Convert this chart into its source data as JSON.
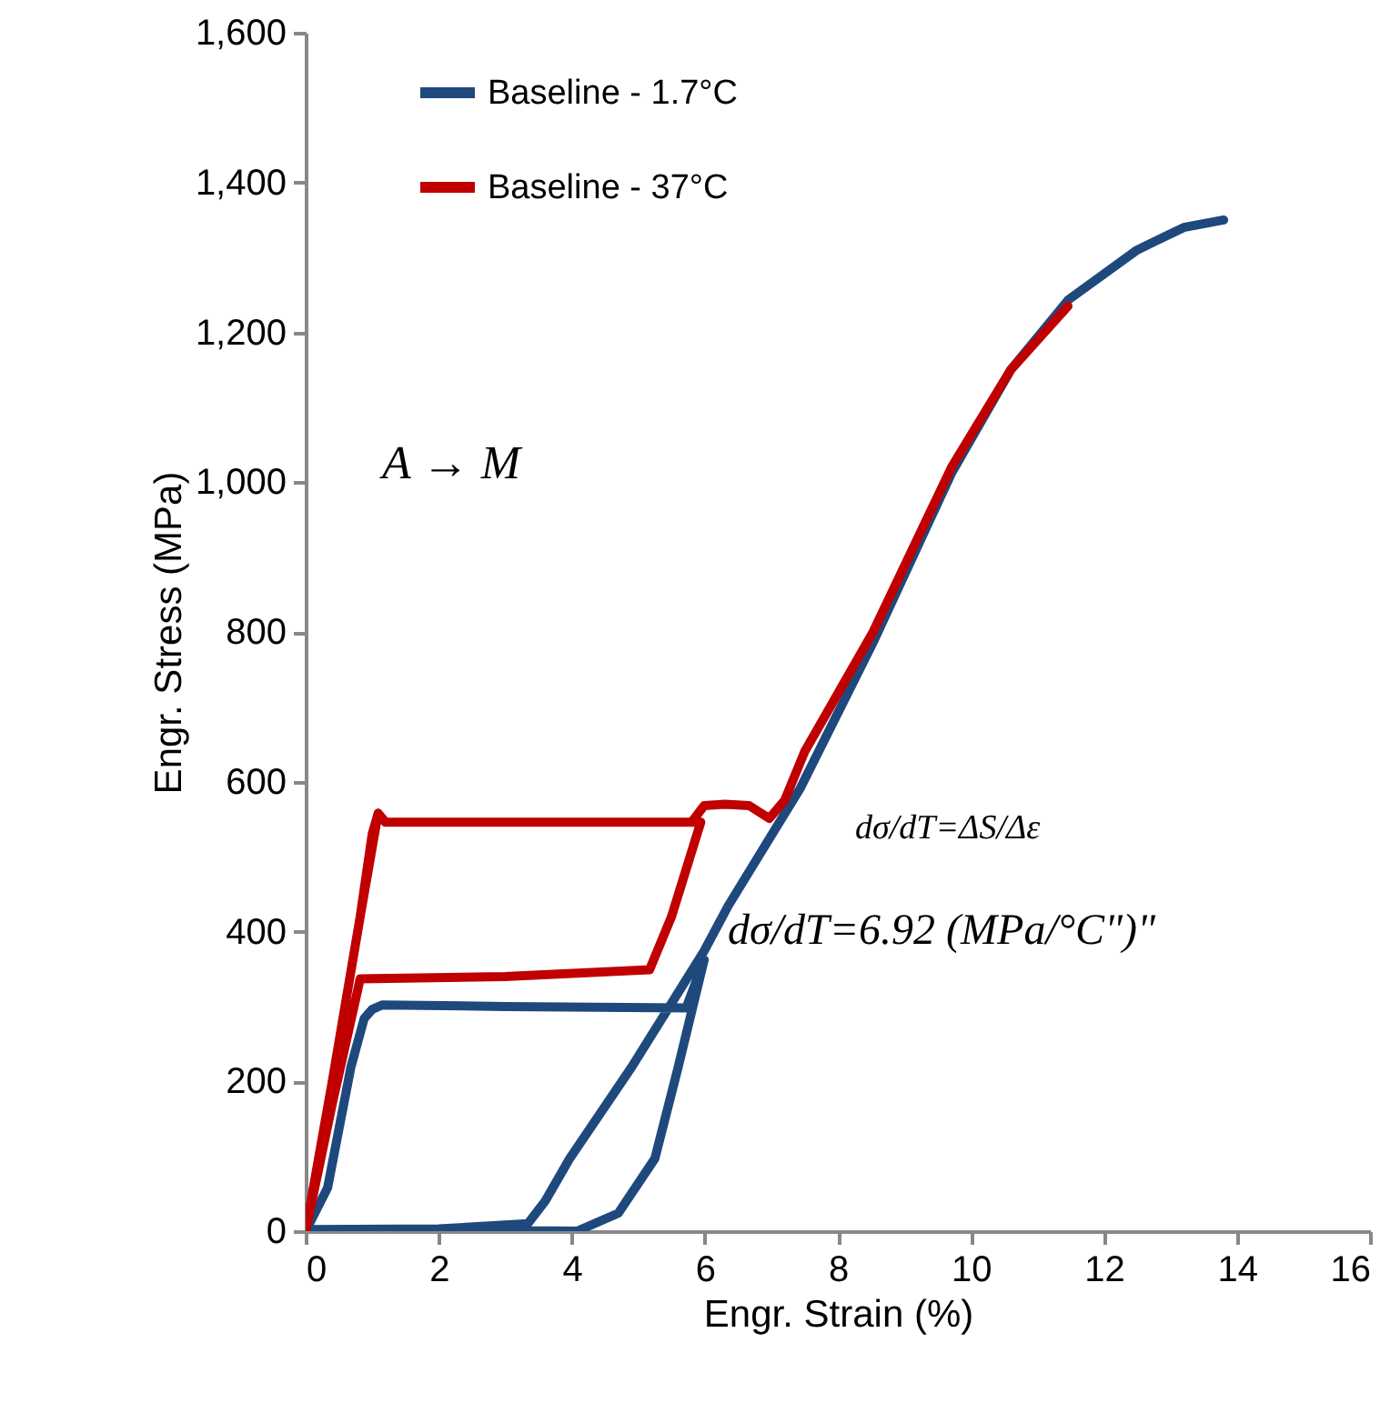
{
  "chart_data": {
    "type": "line",
    "xlabel": "Engr. Strain (%)",
    "ylabel": "Engr. Stress (MPa)",
    "xlim": [
      0,
      16
    ],
    "xticks": [
      0,
      2,
      4,
      6,
      8,
      10,
      12,
      14,
      16
    ],
    "ylim": [
      0,
      1600
    ],
    "yticks": [
      0,
      200,
      400,
      600,
      800,
      {
        "value": 1000,
        "label": "1,000"
      },
      {
        "value": 1200,
        "label": "1,200"
      },
      {
        "value": 1400,
        "label": "1,400"
      },
      {
        "value": 1600,
        "label": "1,600"
      }
    ],
    "grid": false,
    "legend": "top left",
    "line_style": "solid",
    "marker": "none",
    "annotations": [
      "A → M",
      "dσ/dT=ΔS/Δε",
      "dσ/dT=6.92 (MPa/°C\")\""
    ],
    "series": [
      {
        "name": "Baseline - 1.7°C",
        "color": "#1f497d",
        "x": [
          0,
          0.33,
          0.68,
          0.88,
          1.0,
          1.15,
          3.0,
          5.72,
          5.99,
          5.6,
          5.25,
          4.7,
          4.08,
          2.0,
          0.05,
          2.0,
          3.34,
          3.6,
          3.97,
          4.9,
          5.99,
          6.35,
          7.44,
          8.53,
          9.71,
          10.6,
          11.46,
          12.5,
          13.2,
          13.8
        ],
        "values": [
          0,
          58,
          219,
          284,
          296,
          302,
          300,
          298,
          362,
          219,
          97,
          24,
          0,
          2,
          2,
          3,
          10,
          40,
          97,
          219,
          374,
          434,
          592,
          786,
          1012,
          1150,
          1243,
          1310,
          1340,
          1350
        ]
      },
      {
        "name": "Baseline - 37°C",
        "color": "#c00000",
        "x": [
          0,
          0.4,
          0.82,
          1.0,
          1.09,
          1.2,
          3.0,
          5.8,
          5.94,
          5.5,
          5.17,
          3.0,
          0.82,
          0.4,
          0,
          0.4,
          0.82,
          1.09,
          1.2,
          3.0,
          5.8,
          5.99,
          6.3,
          6.67,
          6.97,
          7.2,
          7.5,
          8.53,
          9.71,
          10.6,
          11.46
        ],
        "values": [
          0,
          200,
          420,
          530,
          558,
          546,
          546,
          546,
          546,
          420,
          349,
          340,
          337,
          170,
          0,
          200,
          420,
          558,
          546,
          546,
          546,
          568,
          570,
          568,
          551,
          575,
          640,
          800,
          1020,
          1150,
          1235
        ]
      }
    ]
  }
}
